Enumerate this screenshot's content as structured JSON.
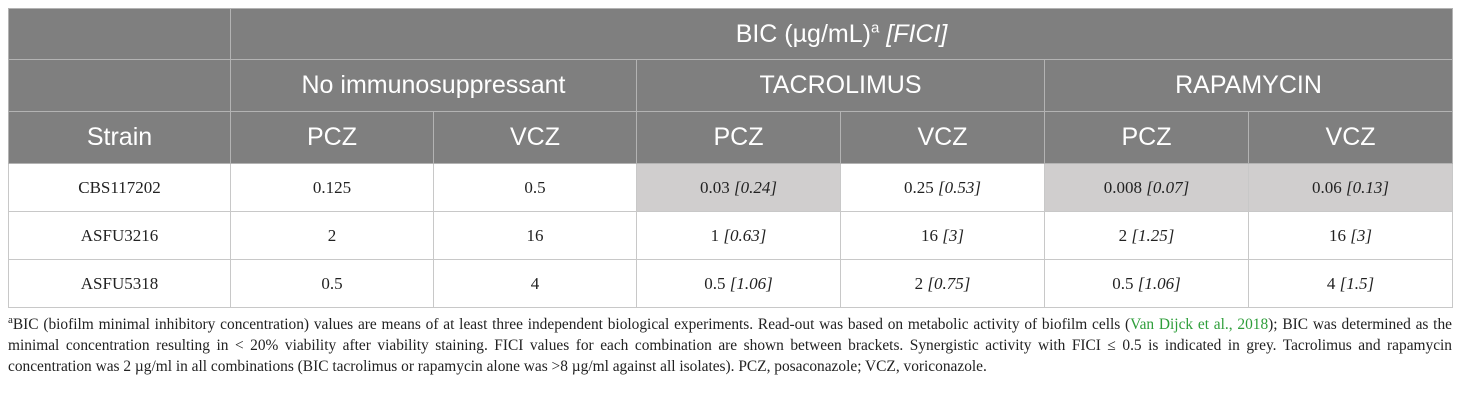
{
  "table": {
    "header": {
      "group_title_main": "BIC (µg/mL)",
      "group_title_sup": "a",
      "group_title_italic": "[FICI]",
      "conditions": [
        "No immunosuppressant",
        "TACROLIMUS",
        "RAPAMYCIN"
      ],
      "strain_label": "Strain",
      "drugs": [
        "PCZ",
        "VCZ",
        "PCZ",
        "VCZ",
        "PCZ",
        "VCZ"
      ]
    },
    "rows": [
      {
        "strain": "CBS117202",
        "cells": [
          {
            "value": "0.125",
            "fici": "",
            "grey": false
          },
          {
            "value": "0.5",
            "fici": "",
            "grey": false
          },
          {
            "value": "0.03",
            "fici": "[0.24]",
            "grey": true
          },
          {
            "value": "0.25",
            "fici": "[0.53]",
            "grey": false
          },
          {
            "value": "0.008",
            "fici": "[0.07]",
            "grey": true
          },
          {
            "value": "0.06",
            "fici": "[0.13]",
            "grey": true
          }
        ]
      },
      {
        "strain": "ASFU3216",
        "cells": [
          {
            "value": "2",
            "fici": "",
            "grey": false
          },
          {
            "value": "16",
            "fici": "",
            "grey": false
          },
          {
            "value": "1",
            "fici": "[0.63]",
            "grey": false
          },
          {
            "value": "16",
            "fici": "[3]",
            "grey": false
          },
          {
            "value": "2",
            "fici": "[1.25]",
            "grey": false
          },
          {
            "value": "16",
            "fici": "[3]",
            "grey": false
          }
        ]
      },
      {
        "strain": "ASFU5318",
        "cells": [
          {
            "value": "0.5",
            "fici": "",
            "grey": false
          },
          {
            "value": "4",
            "fici": "",
            "grey": false
          },
          {
            "value": "0.5",
            "fici": "[1.06]",
            "grey": false
          },
          {
            "value": "2",
            "fici": "[0.75]",
            "grey": false
          },
          {
            "value": "0.5",
            "fici": "[1.06]",
            "grey": false
          },
          {
            "value": "4",
            "fici": "[1.5]",
            "grey": false
          }
        ]
      }
    ]
  },
  "footnote": {
    "marker": "a",
    "text_before_citation": "BIC (biofilm minimal inhibitory concentration) values are means of at least three independent biological experiments. Read-out was based on metabolic activity of biofilm cells (",
    "citation": "Van Dijck et al., 2018",
    "text_after_citation": "); BIC was determined as the minimal concentration resulting in < 20% viability after viability staining. FICI values for each combination are shown between brackets. Synergistic activity with FICI ≤ 0.5 is indicated in grey. Tacrolimus and rapamycin concentration was 2 µg/ml in all combinations (BIC tacrolimus or rapamycin alone was >8 µg/ml against all isolates). PCZ, posaconazole; VCZ, voriconazole."
  },
  "colors": {
    "header_bg": "#7f7f7f",
    "synergy_grey": "#d0cece",
    "citation_green": "#2e9e3a"
  }
}
